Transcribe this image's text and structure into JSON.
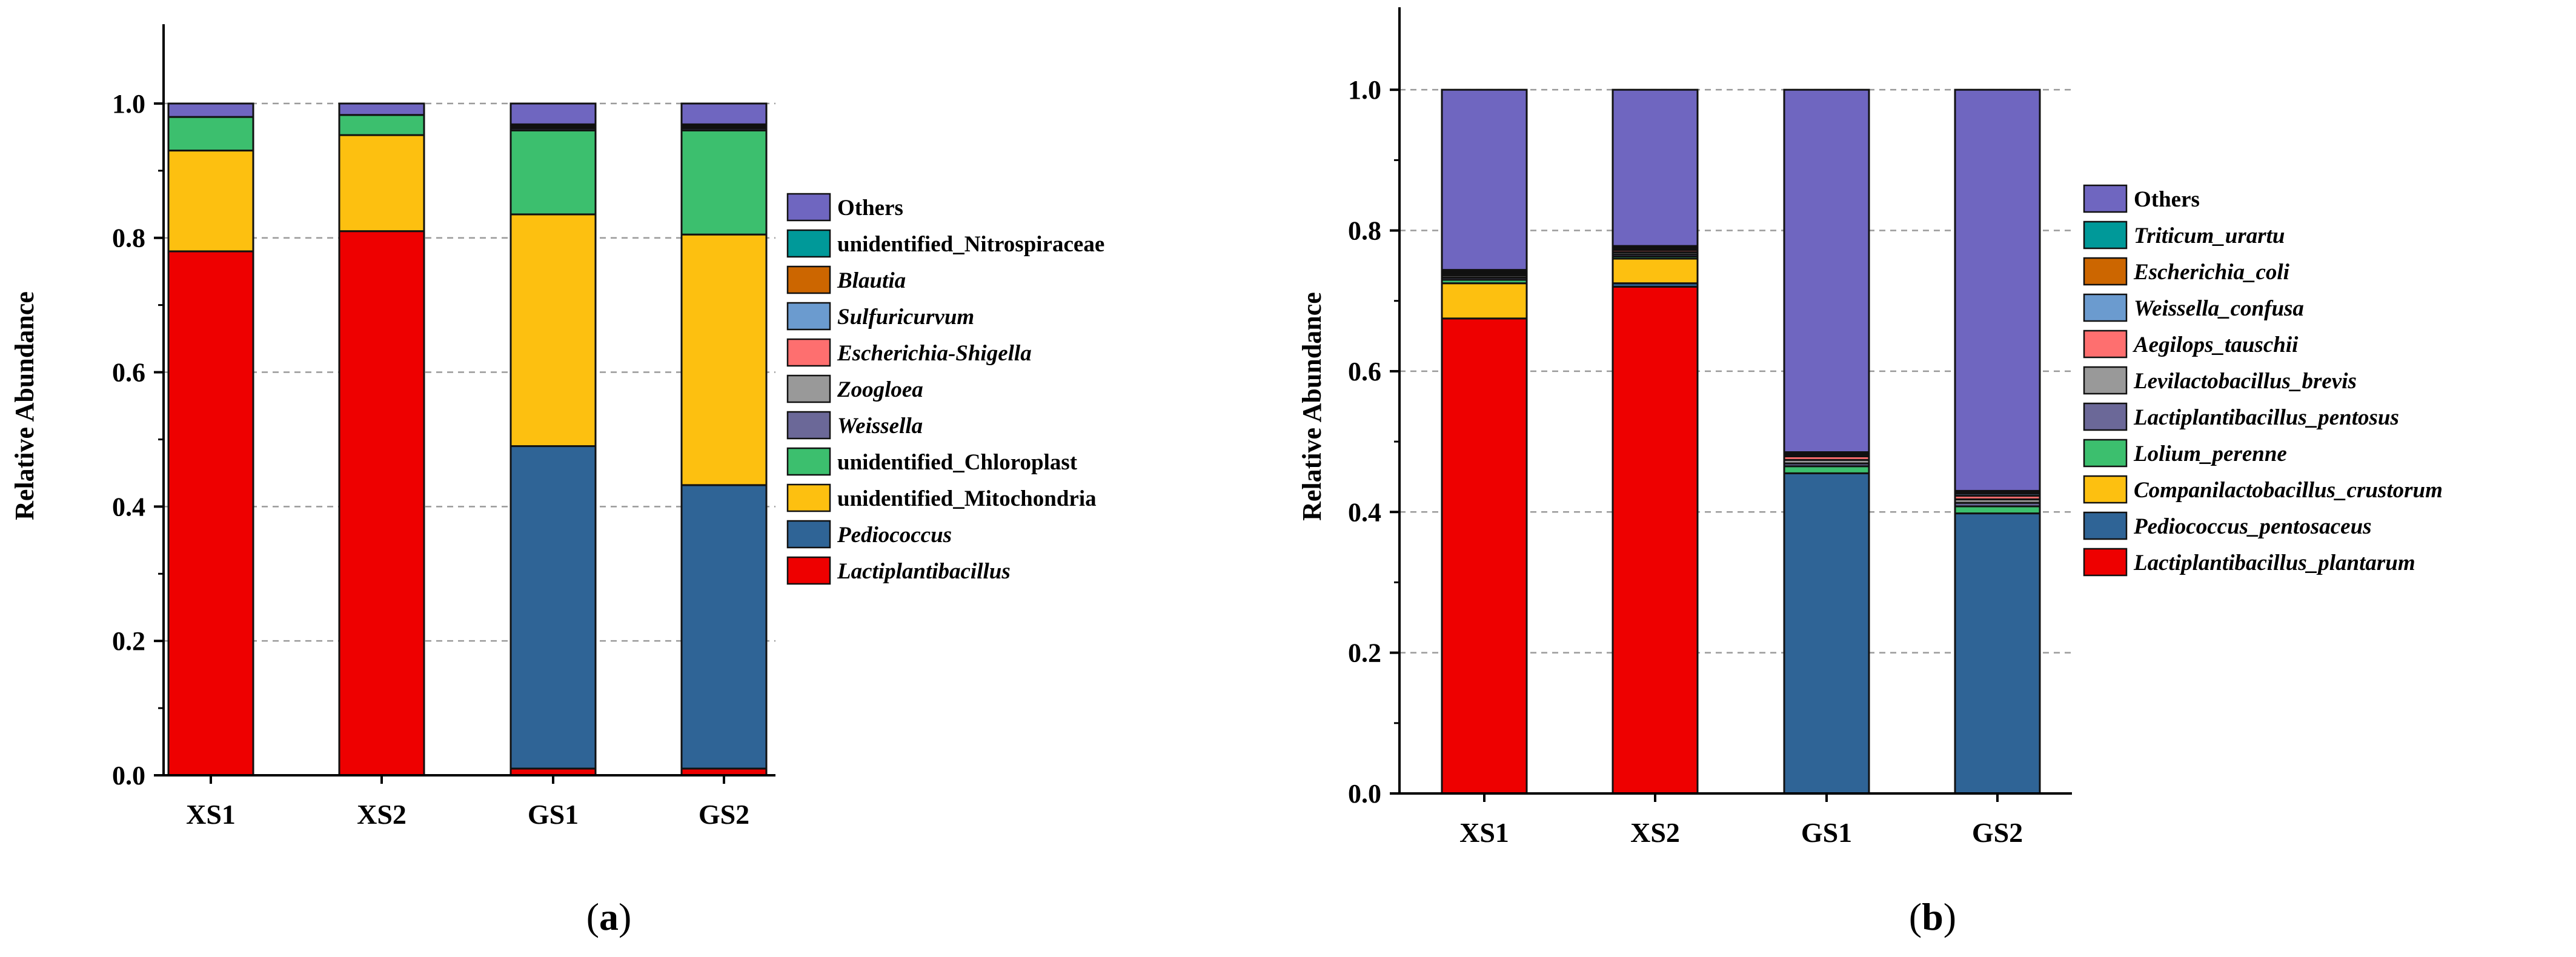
{
  "chart_data": [
    {
      "type": "bar",
      "stacked": true,
      "panel_label": "(a)",
      "ylabel": "Relative Abundance",
      "ylim": [
        0,
        1.1
      ],
      "yticks": [
        "0.0",
        "0.2",
        "0.4",
        "0.6",
        "0.8",
        "1.0"
      ],
      "ytick_values": [
        0,
        0.2,
        0.4,
        0.6,
        0.8,
        1.0
      ],
      "grid": true,
      "legend_position": "right",
      "categories": [
        "XS1",
        "XS2",
        "GS1",
        "GS2"
      ],
      "series": [
        {
          "name": "Lactiplantibacillus",
          "italic": true,
          "color": "#ee0000",
          "values": [
            0.78,
            0.81,
            0.01,
            0.01
          ]
        },
        {
          "name": "Pediococcus",
          "italic": true,
          "color": "#2f6496",
          "values": [
            0.0,
            0.0,
            0.48,
            0.422
          ]
        },
        {
          "name": "unidentified_Mitochondria",
          "italic": false,
          "color": "#fdc010",
          "values": [
            0.15,
            0.143,
            0.345,
            0.373
          ]
        },
        {
          "name": "unidentified_Chloroplast",
          "italic": false,
          "color": "#3cbf6e",
          "values": [
            0.05,
            0.03,
            0.125,
            0.155
          ]
        },
        {
          "name": "Weissella",
          "italic": true,
          "color": "#6b6898",
          "values": [
            0.0,
            0.0,
            0.003,
            0.003
          ]
        },
        {
          "name": "Zoogloea",
          "italic": true,
          "color": "#999999",
          "values": [
            0.0,
            0.0,
            0.002,
            0.002
          ]
        },
        {
          "name": "Escherichia-Shigella",
          "italic": true,
          "color": "#fe6f6f",
          "values": [
            0.0,
            0.0,
            0.001,
            0.001
          ]
        },
        {
          "name": "Sulfuricurvum",
          "italic": true,
          "color": "#6b9bcf",
          "values": [
            0.0,
            0.0,
            0.001,
            0.001
          ]
        },
        {
          "name": "Blautia",
          "italic": true,
          "color": "#cc6600",
          "values": [
            0.0,
            0.0,
            0.001,
            0.001
          ]
        },
        {
          "name": "unidentified_Nitrospiraceae",
          "italic": false,
          "color": "#009999",
          "values": [
            0.0,
            0.0,
            0.001,
            0.001
          ]
        },
        {
          "name": "Others",
          "italic": false,
          "color": "#6f66c0",
          "values": [
            0.02,
            0.017,
            0.031,
            0.031
          ]
        }
      ]
    },
    {
      "type": "bar",
      "stacked": true,
      "panel_label": "(b)",
      "ylabel": "Relative Abundance",
      "ylim": [
        0,
        1.1
      ],
      "yticks": [
        "0.0",
        "0.2",
        "0.4",
        "0.6",
        "0.8",
        "1.0"
      ],
      "ytick_values": [
        0,
        0.2,
        0.4,
        0.6,
        0.8,
        1.0
      ],
      "grid": true,
      "legend_position": "right",
      "categories": [
        "XS1",
        "XS2",
        "GS1",
        "GS2"
      ],
      "series": [
        {
          "name": "Lactiplantibacillus_plantarum",
          "italic": true,
          "color": "#ee0000",
          "values": [
            0.675,
            0.72,
            0.0,
            0.0
          ]
        },
        {
          "name": "Pediococcus_pentosaceus",
          "italic": true,
          "color": "#2f6496",
          "values": [
            0.0,
            0.005,
            0.455,
            0.398
          ]
        },
        {
          "name": "Companilactobacillus_crustorum",
          "italic": true,
          "color": "#fdc010",
          "values": [
            0.05,
            0.035,
            0.0,
            0.0
          ]
        },
        {
          "name": "Lolium_perenne",
          "italic": true,
          "color": "#3cbf6e",
          "values": [
            0.005,
            0.003,
            0.01,
            0.01
          ]
        },
        {
          "name": "Lactiplantibacillus_pentosus",
          "italic": true,
          "color": "#6b6898",
          "values": [
            0.003,
            0.003,
            0.004,
            0.005
          ]
        },
        {
          "name": "Levilactobacillus_brevis",
          "italic": true,
          "color": "#999999",
          "values": [
            0.003,
            0.003,
            0.005,
            0.005
          ]
        },
        {
          "name": "Aegilops_tauschii",
          "italic": true,
          "color": "#fe6f6f",
          "values": [
            0.002,
            0.003,
            0.005,
            0.005
          ]
        },
        {
          "name": "Weissella_confusa",
          "italic": true,
          "color": "#6b9bcf",
          "values": [
            0.002,
            0.002,
            0.002,
            0.003
          ]
        },
        {
          "name": "Escherichia_coli",
          "italic": true,
          "color": "#cc6600",
          "values": [
            0.002,
            0.002,
            0.002,
            0.002
          ]
        },
        {
          "name": "Triticum_urartu",
          "italic": true,
          "color": "#009999",
          "values": [
            0.002,
            0.002,
            0.002,
            0.002
          ]
        },
        {
          "name": "Others",
          "italic": false,
          "color": "#6f66c0",
          "values": [
            0.256,
            0.222,
            0.515,
            0.57
          ]
        }
      ]
    }
  ]
}
